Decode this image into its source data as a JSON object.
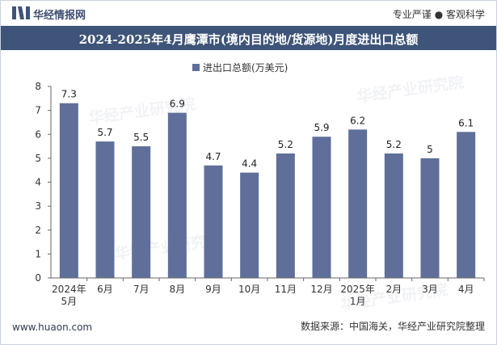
{
  "header": {
    "brand": "华经情报网",
    "tagline": "专业严谨 ● 客观科学"
  },
  "footer": {
    "website": "www.huaon.com",
    "source": "数据来源：中国海关，华经产业研究院整理"
  },
  "watermark": "华经产业研究院",
  "colors": {
    "title_bar": "#3e5478",
    "bar": "#5f6f99",
    "axis": "#666666"
  },
  "chart_data": {
    "type": "bar",
    "title": "2024-2025年4月鹰潭市(境内目的地/货源地)月度进出口总额",
    "legend": "进出口总额(万美元)",
    "categories": [
      "2024年\n5月",
      "6月",
      "7月",
      "8月",
      "9月",
      "10月",
      "11月",
      "12月",
      "2025年\n1月",
      "2月",
      "3月",
      "4月"
    ],
    "series": [
      {
        "name": "进出口总额(万美元)",
        "values": [
          7.3,
          5.7,
          5.5,
          6.9,
          4.7,
          4.4,
          5.2,
          5.9,
          6.2,
          5.2,
          5.0,
          6.1
        ]
      }
    ],
    "value_labels": [
      "7.3",
      "5.7",
      "5.5",
      "6.9",
      "4.7",
      "4.4",
      "5.2",
      "5.9",
      "6.2",
      "5.2",
      "5",
      "6.1"
    ],
    "ylim": [
      0,
      8
    ],
    "yticks": [
      0,
      1,
      2,
      3,
      4,
      5,
      6,
      7,
      8
    ],
    "xlabel": "",
    "ylabel": "",
    "grid": false,
    "legend_position": "top-center"
  }
}
